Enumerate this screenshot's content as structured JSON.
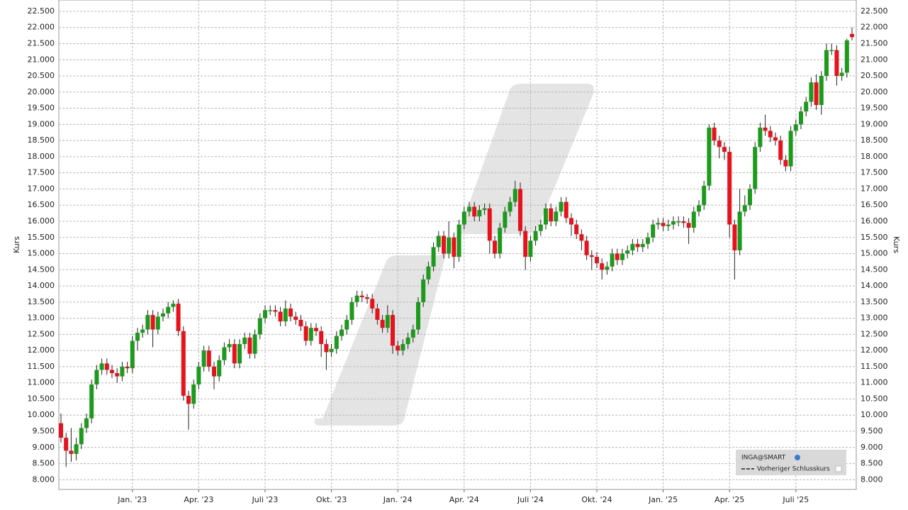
{
  "chart_data": {
    "type": "candlestick",
    "y_label": "Kurs",
    "legend": {
      "instrument": "INGA@SMART",
      "reference": "Vorheriger Schlusskurs"
    },
    "up_color": "#1c9a1c",
    "down_color": "#e8121c",
    "grid": true,
    "categories": [
      null,
      null,
      null,
      null,
      null,
      null,
      null,
      null,
      null,
      null,
      null,
      null,
      null,
      null,
      "Jan. '23",
      null,
      null,
      null,
      null,
      null,
      null,
      null,
      null,
      null,
      null,
      null,
      null,
      "Apr. '23",
      null,
      null,
      null,
      null,
      null,
      null,
      null,
      null,
      null,
      null,
      null,
      null,
      "Juli '23",
      null,
      null,
      null,
      null,
      null,
      null,
      null,
      null,
      null,
      null,
      null,
      null,
      "Okt. '23",
      null,
      null,
      null,
      null,
      null,
      null,
      null,
      null,
      null,
      null,
      null,
      null,
      "Jan. '24",
      null,
      null,
      null,
      null,
      null,
      null,
      null,
      null,
      null,
      null,
      null,
      null,
      "Apr. '24",
      null,
      null,
      null,
      null,
      null,
      null,
      null,
      null,
      null,
      null,
      null,
      null,
      "Juli '24",
      null,
      null,
      null,
      null,
      null,
      null,
      null,
      null,
      null,
      null,
      null,
      null,
      "Okt. '24",
      null,
      null,
      null,
      null,
      null,
      null,
      null,
      null,
      null,
      null,
      null,
      null,
      "Jan. '25",
      null,
      null,
      null,
      null,
      null,
      null,
      null,
      null,
      null,
      null,
      null,
      null,
      "Apr. '25",
      null,
      null,
      null,
      null,
      null,
      null,
      null,
      null,
      null,
      null,
      null,
      null,
      "Juli '25",
      null,
      null,
      null,
      null,
      null,
      null,
      null,
      null,
      null,
      null,
      null
    ],
    "open": [
      9750,
      9300,
      8900,
      8800,
      9100,
      9600,
      9900,
      10950,
      11400,
      11600,
      11400,
      11300,
      11200,
      11500,
      11450,
      12300,
      12550,
      12650,
      13100,
      12650,
      13050,
      13150,
      13350,
      13450,
      12600,
      10600,
      10350,
      10950,
      11500,
      12000,
      11500,
      11200,
      11700,
      12100,
      12200,
      11600,
      12200,
      12400,
      11900,
      12500,
      13000,
      13250,
      13250,
      13200,
      12900,
      13300,
      13050,
      12950,
      12750,
      12300,
      12700,
      12600,
      12200,
      11950,
      12050,
      12450,
      12650,
      12950,
      13500,
      13700,
      13650,
      13600,
      13300,
      12950,
      12700,
      13100,
      12150,
      12000,
      12200,
      12400,
      12650,
      13500,
      14200,
      14600,
      15200,
      15550,
      15000,
      15500,
      14900,
      15900,
      16300,
      16450,
      16150,
      16350,
      16400,
      15400,
      15000,
      15800,
      16300,
      16600,
      17000,
      15700,
      14900,
      15400,
      15700,
      15900,
      16400,
      16000,
      16300,
      16600,
      16100,
      15900,
      15600,
      15400,
      14950,
      14900,
      14700,
      14500,
      14600,
      15000,
      14800,
      15000,
      15100,
      15300,
      15200,
      15300,
      15500,
      15900,
      15950,
      15850,
      15900,
      16000,
      16000,
      15950,
      15800,
      16300,
      16500,
      17100,
      18900,
      18500,
      18300,
      18150,
      15900,
      15100,
      16300,
      16500,
      17000,
      18300,
      18900,
      18800,
      18600,
      18500,
      17900,
      17700,
      18800,
      19000,
      19400,
      19700,
      20300,
      19600,
      20500,
      21300,
      21300,
      20500,
      20600,
      21800
    ],
    "high": [
      10050,
      9450,
      9600,
      9300,
      9750,
      10050,
      11100,
      11550,
      11750,
      11750,
      11550,
      11450,
      11650,
      11650,
      12450,
      12700,
      12800,
      13250,
      13250,
      13200,
      13300,
      13500,
      13550,
      13600,
      12750,
      10750,
      11100,
      11650,
      12150,
      12150,
      11650,
      11850,
      12250,
      12350,
      12350,
      12350,
      12550,
      12550,
      12650,
      13150,
      13400,
      13400,
      13400,
      13350,
      13550,
      13450,
      13200,
      13100,
      12900,
      12850,
      12850,
      12750,
      12350,
      12200,
      12600,
      12800,
      13100,
      13650,
      13850,
      13850,
      13750,
      13750,
      13450,
      13100,
      13400,
      13250,
      12300,
      12350,
      12550,
      12800,
      13650,
      14350,
      14750,
      15350,
      15700,
      15700,
      16000,
      15650,
      16050,
      16450,
      16600,
      16600,
      16500,
      16550,
      16550,
      15550,
      15950,
      16450,
      16750,
      17250,
      17200,
      15850,
      15550,
      15850,
      16050,
      16550,
      16550,
      16450,
      16750,
      16750,
      16250,
      16050,
      15750,
      15550,
      15100,
      15050,
      14850,
      14750,
      15150,
      15150,
      15150,
      15250,
      15450,
      15450,
      15450,
      15650,
      16050,
      16100,
      16100,
      16050,
      16150,
      16150,
      16150,
      16100,
      16450,
      16650,
      17250,
      19000,
      19050,
      18650,
      18450,
      18300,
      16050,
      17000,
      16800,
      17150,
      18450,
      19050,
      19300,
      18950,
      18750,
      18650,
      18050,
      18950,
      19150,
      19550,
      19850,
      20450,
      20550,
      20650,
      21500,
      21500,
      21450,
      20750,
      21650,
      22000
    ],
    "low": [
      9150,
      8400,
      8550,
      8600,
      8950,
      9450,
      9750,
      10800,
      11250,
      11250,
      11150,
      11000,
      11050,
      11300,
      11300,
      12000,
      12400,
      12500,
      12100,
      12500,
      12900,
      13000,
      13200,
      12450,
      10450,
      9550,
      10200,
      10800,
      11350,
      11350,
      10800,
      11050,
      11550,
      11950,
      11450,
      11450,
      12050,
      11750,
      11750,
      12350,
      12850,
      13100,
      13050,
      12750,
      12750,
      12900,
      12800,
      12600,
      12150,
      12150,
      12450,
      11800,
      11400,
      11800,
      11900,
      12300,
      12500,
      12800,
      13350,
      13500,
      13450,
      13150,
      12800,
      12550,
      12550,
      11900,
      11850,
      11850,
      12050,
      12250,
      12500,
      13350,
      14050,
      14450,
      15050,
      14850,
      14850,
      14550,
      14750,
      15750,
      16150,
      16000,
      16000,
      16200,
      15000,
      14850,
      14850,
      15650,
      16150,
      16450,
      15550,
      14500,
      14750,
      15250,
      15550,
      15750,
      15850,
      15850,
      16150,
      15950,
      15550,
      15450,
      15100,
      14800,
      14500,
      14550,
      14200,
      14350,
      14450,
      14650,
      14650,
      14850,
      14950,
      15050,
      15050,
      15150,
      15350,
      15750,
      15700,
      15700,
      15750,
      15850,
      15800,
      15300,
      15650,
      16150,
      16350,
      16950,
      18350,
      17950,
      17900,
      15500,
      14200,
      14950,
      16150,
      16350,
      16850,
      18150,
      18650,
      18450,
      18350,
      17750,
      17550,
      17550,
      18650,
      18850,
      19250,
      19550,
      19450,
      19300,
      20350,
      21150,
      20200,
      20350,
      20450,
      21600
    ],
    "close": [
      9300,
      8900,
      8800,
      9100,
      9600,
      9900,
      10950,
      11400,
      11600,
      11400,
      11300,
      11200,
      11500,
      11450,
      12300,
      12550,
      12650,
      13100,
      12650,
      13050,
      13150,
      13350,
      13450,
      12600,
      10600,
      10350,
      10950,
      11500,
      12000,
      11500,
      11200,
      11700,
      12100,
      12200,
      11600,
      12200,
      12400,
      11900,
      12500,
      13000,
      13250,
      13250,
      13200,
      12900,
      13300,
      13050,
      12950,
      12750,
      12300,
      12700,
      12600,
      12200,
      11950,
      12050,
      12450,
      12650,
      12950,
      13500,
      13700,
      13650,
      13600,
      13300,
      12950,
      12700,
      13100,
      12150,
      12000,
      12200,
      12400,
      12650,
      13500,
      14200,
      14600,
      15200,
      15550,
      15000,
      15500,
      14900,
      15900,
      16300,
      16450,
      16150,
      16350,
      16400,
      15400,
      15000,
      15800,
      16300,
      16600,
      17000,
      15700,
      14900,
      15400,
      15700,
      15900,
      16400,
      16000,
      16300,
      16600,
      16100,
      15900,
      15600,
      15400,
      14950,
      14900,
      14700,
      14500,
      14600,
      15000,
      14800,
      15000,
      15100,
      15300,
      15200,
      15300,
      15500,
      15900,
      15950,
      15850,
      15900,
      16000,
      16000,
      15950,
      15800,
      16300,
      16500,
      17100,
      18900,
      18500,
      18300,
      18150,
      15900,
      15100,
      16300,
      16500,
      17000,
      18300,
      18900,
      18800,
      18600,
      18500,
      17900,
      17700,
      18800,
      19000,
      19400,
      19700,
      20300,
      19600,
      20500,
      21300,
      21300,
      20500,
      20600,
      21600,
      21700
    ],
    "ylim": [
      7700,
      22850
    ],
    "yticks": [
      {
        "value": 8000,
        "label": "8.000"
      },
      {
        "value": 8500,
        "label": "8.500"
      },
      {
        "value": 9000,
        "label": "9.000"
      },
      {
        "value": 9500,
        "label": "9.500"
      },
      {
        "value": 10000,
        "label": "10.000"
      },
      {
        "value": 10500,
        "label": "10.500"
      },
      {
        "value": 11000,
        "label": "11.000"
      },
      {
        "value": 11500,
        "label": "11.500"
      },
      {
        "value": 12000,
        "label": "12.000"
      },
      {
        "value": 12500,
        "label": "12.500"
      },
      {
        "value": 13000,
        "label": "13.000"
      },
      {
        "value": 13500,
        "label": "13.500"
      },
      {
        "value": 14000,
        "label": "14.000"
      },
      {
        "value": 14500,
        "label": "14.500"
      },
      {
        "value": 15000,
        "label": "15.000"
      },
      {
        "value": 15500,
        "label": "15.500"
      },
      {
        "value": 16000,
        "label": "16.000"
      },
      {
        "value": 16500,
        "label": "16.500"
      },
      {
        "value": 17000,
        "label": "17.000"
      },
      {
        "value": 17500,
        "label": "17.500"
      },
      {
        "value": 18000,
        "label": "18.000"
      },
      {
        "value": 18500,
        "label": "18.500"
      },
      {
        "value": 19000,
        "label": "19.000"
      },
      {
        "value": 19500,
        "label": "19.500"
      },
      {
        "value": 20000,
        "label": "20.000"
      },
      {
        "value": 20500,
        "label": "20.500"
      },
      {
        "value": 21000,
        "label": "21.000"
      },
      {
        "value": 21500,
        "label": "21.500"
      },
      {
        "value": 22000,
        "label": "22.000"
      },
      {
        "value": 22500,
        "label": "22.500"
      }
    ]
  }
}
